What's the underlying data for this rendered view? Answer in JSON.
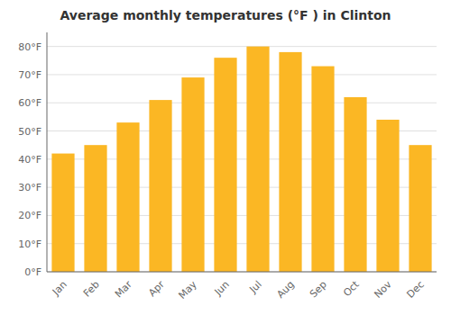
{
  "chart_data": {
    "type": "bar",
    "title": "Average monthly temperatures (°F ) in Clinton",
    "categories": [
      "Jan",
      "Feb",
      "Mar",
      "Apr",
      "May",
      "Jun",
      "Jul",
      "Aug",
      "Sep",
      "Oct",
      "Nov",
      "Dec"
    ],
    "values": [
      42,
      45,
      53,
      61,
      69,
      76,
      80,
      78,
      73,
      62,
      54,
      45
    ],
    "color": "#FBB724",
    "ylim": [
      0,
      85
    ],
    "yticks": [
      {
        "value": 0,
        "label": "0°F"
      },
      {
        "value": 10,
        "label": "10°F"
      },
      {
        "value": 20,
        "label": "20°F"
      },
      {
        "value": 30,
        "label": "30°F"
      },
      {
        "value": 40,
        "label": "40°F"
      },
      {
        "value": 50,
        "label": "50°F"
      },
      {
        "value": 60,
        "label": "60°F"
      },
      {
        "value": 70,
        "label": "70°F"
      },
      {
        "value": 80,
        "label": "80°F"
      }
    ],
    "grid": true
  }
}
